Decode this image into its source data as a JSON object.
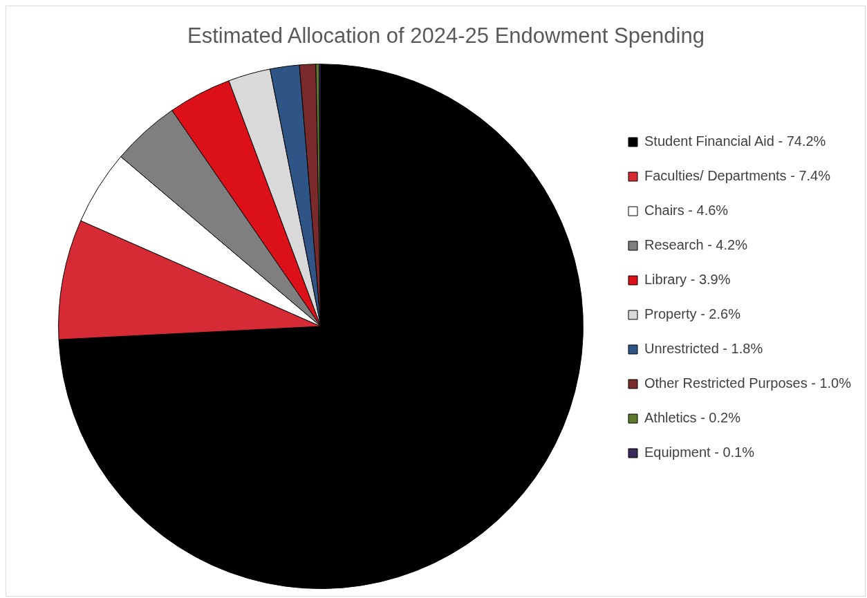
{
  "chart_data": {
    "type": "pie",
    "title": "Estimated Allocation of 2024-25 Endowment Spending",
    "categories": [
      "Student Financial Aid - 74.2%",
      "Faculties/ Departments - 7.4%",
      "Chairs - 4.6%",
      "Research - 4.2%",
      "Library - 3.9%",
      "Property - 2.6%",
      "Unrestricted - 1.8%",
      "Other Restricted Purposes - 1.0%",
      "Athletics - 0.2%",
      "Equipment - 0.1%"
    ],
    "values": [
      74.2,
      7.4,
      4.6,
      4.2,
      3.9,
      2.6,
      1.8,
      1.0,
      0.2,
      0.1
    ],
    "colors": [
      "#000000",
      "#d62b35",
      "#ffffff",
      "#7f7f7f",
      "#dc1018",
      "#d9d9d9",
      "#2e5585",
      "#7a2a2a",
      "#5b7a2e",
      "#3b2a5c"
    ],
    "legend": "right"
  }
}
